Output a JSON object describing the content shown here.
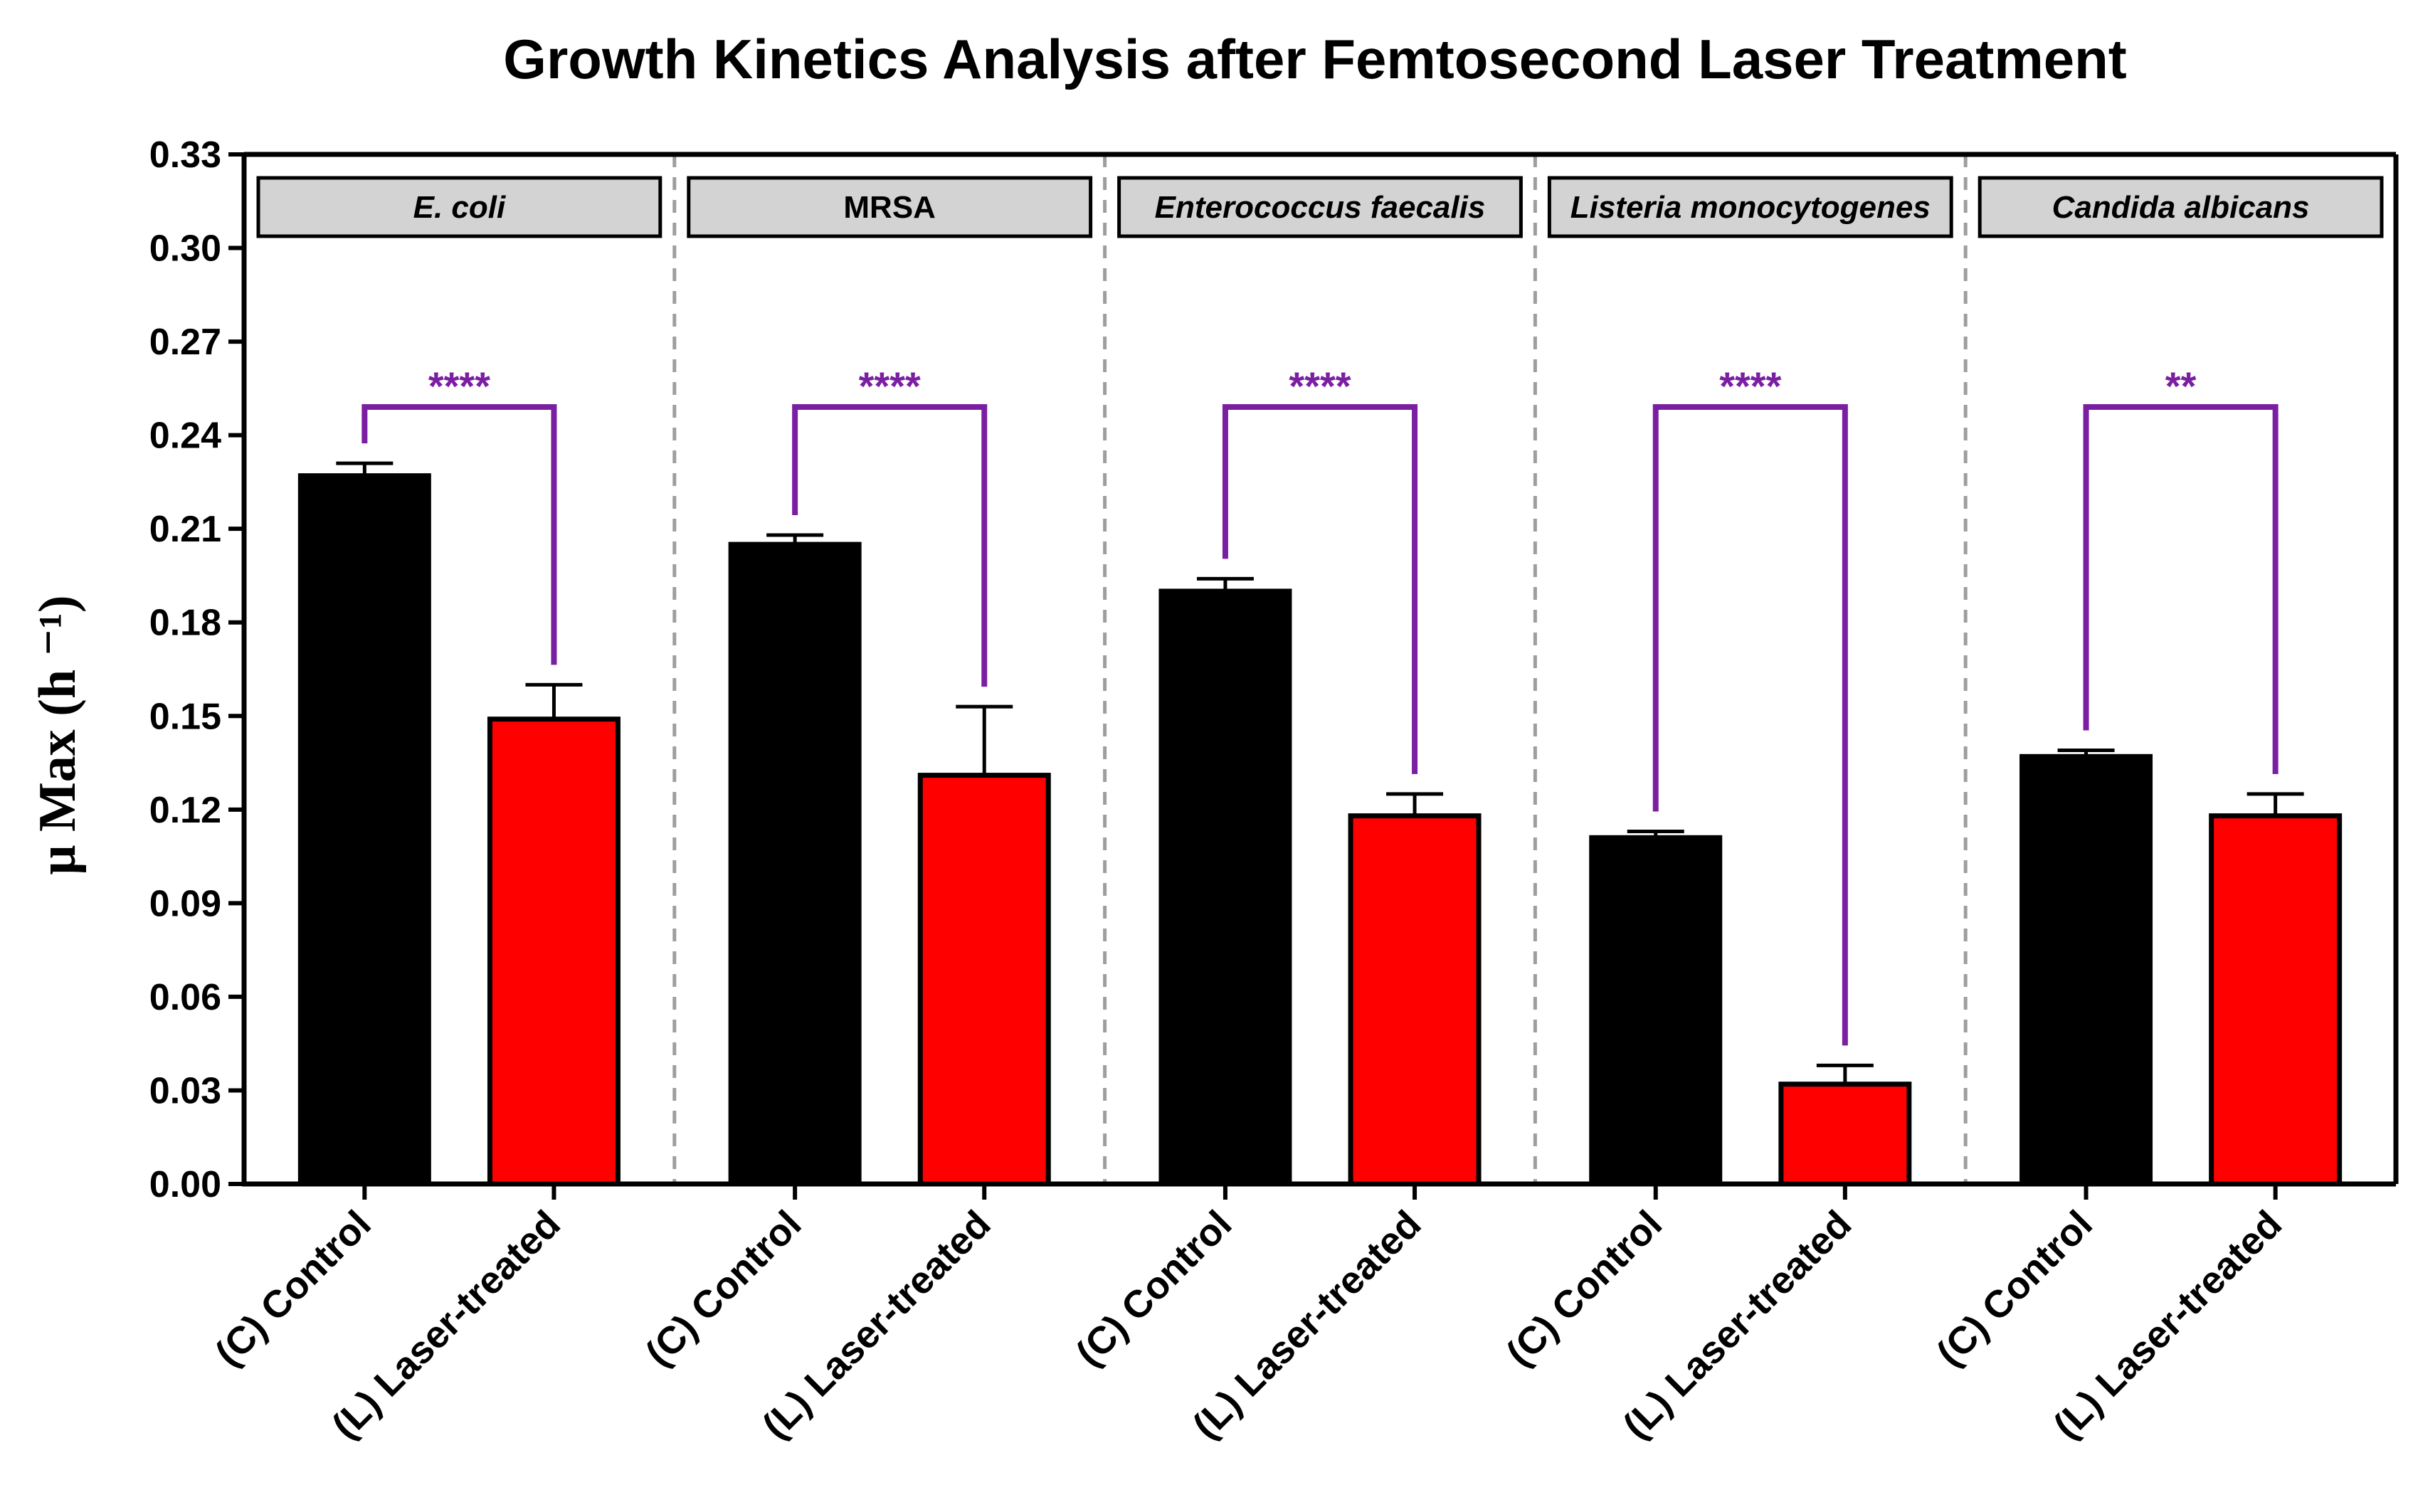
{
  "chart_data": {
    "type": "bar",
    "title": "Growth Kinetics Analysis after Femtosecond Laser Treatment",
    "xlabel": "",
    "ylabel": "μ Max (h ⁻¹)",
    "ylim": [
      0,
      0.33
    ],
    "yticks": [
      "0.00",
      "0.03",
      "0.06",
      "0.09",
      "0.12",
      "0.15",
      "0.18",
      "0.21",
      "0.24",
      "0.27",
      "0.30",
      "0.33"
    ],
    "ytick_values": [
      0,
      0.03,
      0.06,
      0.09,
      0.12,
      0.15,
      0.18,
      0.21,
      0.24,
      0.27,
      0.3,
      0.33
    ],
    "categories": [
      "(C) Control",
      "(L) Laser-treated"
    ],
    "colors": {
      "control": "#000000",
      "laser": "#ff0000",
      "bracket": "#7b1fa2",
      "divider": "#9e9e9e",
      "panel_bg": "#d3d3d3"
    },
    "panels": [
      {
        "name": "E. coli",
        "italic": true,
        "control": 0.227,
        "control_err": 0.004,
        "laser": 0.149,
        "laser_err": 0.011,
        "significance": "****"
      },
      {
        "name": "MRSA",
        "italic": false,
        "control": 0.205,
        "control_err": 0.003,
        "laser": 0.131,
        "laser_err": 0.022,
        "significance": "****"
      },
      {
        "name": "Enterococcus faecalis",
        "italic": true,
        "control": 0.19,
        "control_err": 0.004,
        "laser": 0.118,
        "laser_err": 0.007,
        "significance": "****"
      },
      {
        "name": "Listeria monocytogenes",
        "italic": true,
        "control": 0.111,
        "control_err": 0.002,
        "laser": 0.032,
        "laser_err": 0.006,
        "significance": "****"
      },
      {
        "name": "Candida albicans",
        "italic": true,
        "control": 0.137,
        "control_err": 0.002,
        "laser": 0.118,
        "laser_err": 0.007,
        "significance": "**"
      }
    ]
  }
}
